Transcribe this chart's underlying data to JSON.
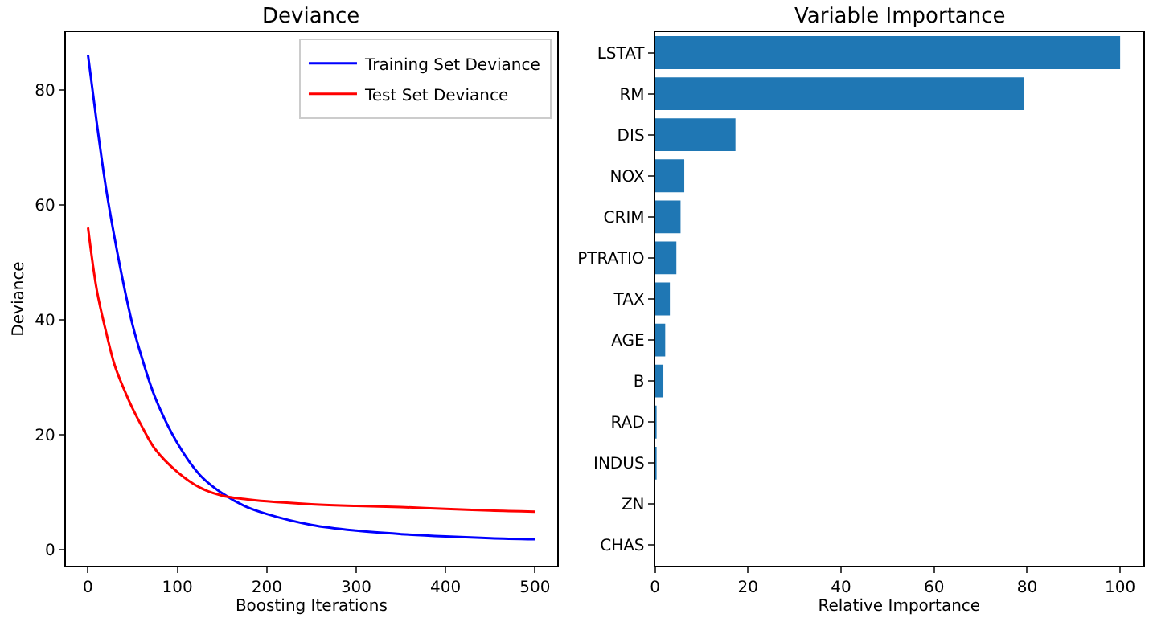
{
  "chart_data": [
    {
      "type": "line",
      "title": "Deviance",
      "xlabel": "Boosting Iterations",
      "ylabel": "Deviance",
      "xlim": [
        -25,
        525
      ],
      "xticks": [
        0,
        100,
        200,
        300,
        400,
        500
      ],
      "ylim": [
        -2.8,
        90
      ],
      "yticks": [
        0,
        20,
        40,
        60,
        80
      ],
      "legend": "top right",
      "series": [
        {
          "name": "Training Set Deviance",
          "color": "#0000ff",
          "x": [
            0,
            10,
            20,
            30,
            40,
            50,
            60,
            75,
            100,
            125,
            150,
            175,
            200,
            250,
            300,
            350,
            400,
            450,
            500
          ],
          "values": [
            86,
            74,
            63,
            54,
            46,
            39,
            33.5,
            26.5,
            18.5,
            13,
            9.8,
            7.6,
            6.2,
            4.3,
            3.3,
            2.7,
            2.3,
            2.0,
            1.8
          ]
        },
        {
          "name": "Test Set Deviance",
          "color": "#ff0000",
          "x": [
            0,
            10,
            20,
            30,
            40,
            50,
            60,
            75,
            100,
            125,
            150,
            175,
            200,
            250,
            300,
            350,
            400,
            450,
            500
          ],
          "values": [
            56,
            45,
            38,
            32,
            28,
            24.5,
            21.5,
            17.5,
            13.5,
            10.8,
            9.4,
            8.8,
            8.4,
            7.9,
            7.6,
            7.4,
            7.1,
            6.8,
            6.6
          ]
        }
      ]
    },
    {
      "type": "bar",
      "orientation": "horizontal",
      "title": "Variable Importance",
      "xlabel": "Relative Importance",
      "xlim": [
        0,
        105
      ],
      "xticks": [
        0,
        20,
        40,
        60,
        80,
        100
      ],
      "categories": [
        "LSTAT",
        "RM",
        "DIS",
        "NOX",
        "CRIM",
        "PTRATIO",
        "TAX",
        "AGE",
        "B",
        "RAD",
        "INDUS",
        "ZN",
        "CHAS"
      ],
      "values": [
        100,
        79.3,
        17.3,
        6.3,
        5.5,
        4.6,
        3.2,
        2.2,
        1.8,
        0.3,
        0.2,
        0,
        0
      ],
      "color": "#1f77b4"
    }
  ]
}
